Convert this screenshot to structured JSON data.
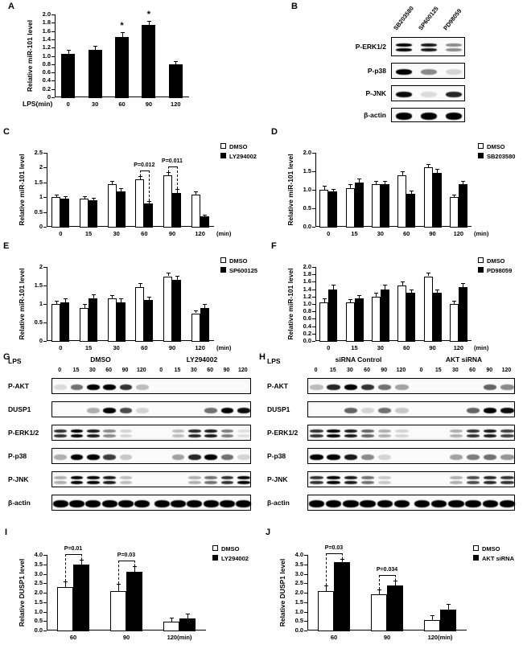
{
  "panel_labels": {
    "A": "A",
    "B": "B",
    "C": "C",
    "D": "D",
    "E": "E",
    "F": "F",
    "G": "G",
    "H": "H",
    "I": "I",
    "J": "J"
  },
  "chart_data": [
    {
      "panel": "A",
      "type": "bar",
      "ylabel": "Relative miR-101 level",
      "xlabel": "LPS(min)",
      "ylim": [
        0,
        2.0
      ],
      "yticks": [
        "0",
        "0.2",
        "0.4",
        "0.6",
        "0.8",
        "1.0",
        "1.2",
        "1.4",
        "1.6",
        "1.8",
        "2.0"
      ],
      "categories": [
        "0",
        "30",
        "60",
        "90",
        "120"
      ],
      "series": [
        {
          "name": "LPS",
          "fill": "#000000",
          "values": [
            1.05,
            1.15,
            1.45,
            1.75,
            0.8
          ],
          "errors": [
            0.1,
            0.1,
            0.13,
            0.1,
            0.08
          ]
        }
      ],
      "stars": [
        {
          "cat": 2,
          "text": "*"
        },
        {
          "cat": 3,
          "text": "*"
        }
      ]
    },
    {
      "panel": "C",
      "type": "bar",
      "legend": true,
      "ylabel": "Relative miR-101 level",
      "x_suffix": "(min)",
      "ylim": [
        0,
        2.5
      ],
      "yticks": [
        "0",
        "0.5",
        "1",
        "1.5",
        "2",
        "2.5"
      ],
      "categories": [
        "0",
        "15",
        "30",
        "60",
        "90",
        "120"
      ],
      "series": [
        {
          "name": "DMSO",
          "fill": "#ffffff",
          "values": [
            1.0,
            0.95,
            1.45,
            1.6,
            1.75,
            1.1
          ],
          "errors": [
            0.1,
            0.08,
            0.1,
            0.12,
            0.1,
            0.1
          ]
        },
        {
          "name": "LY294002",
          "fill": "#000000",
          "values": [
            0.95,
            0.9,
            1.2,
            0.8,
            1.15,
            0.35
          ],
          "errors": [
            0.08,
            0.08,
            0.1,
            0.08,
            0.12,
            0.05
          ]
        }
      ],
      "brackets": [
        {
          "cat": 3,
          "label": "P=0.012"
        },
        {
          "cat": 4,
          "label": "P=0.011"
        }
      ]
    },
    {
      "panel": "D",
      "type": "bar",
      "legend": true,
      "ylabel": "Relative miR-101 level",
      "x_suffix": "(min)",
      "ylim": [
        0,
        2.0
      ],
      "yticks": [
        "0.0",
        "0.5",
        "1.0",
        "1.5",
        "2.0"
      ],
      "categories": [
        "0",
        "15",
        "30",
        "60",
        "90",
        "120"
      ],
      "series": [
        {
          "name": "DMSO",
          "fill": "#ffffff",
          "values": [
            1.0,
            1.05,
            1.15,
            1.4,
            1.6,
            0.8
          ],
          "errors": [
            0.1,
            0.1,
            0.1,
            0.1,
            0.1,
            0.08
          ]
        },
        {
          "name": "SB203580",
          "fill": "#000000",
          "values": [
            0.95,
            1.2,
            1.15,
            0.9,
            1.45,
            1.15
          ],
          "errors": [
            0.08,
            0.1,
            0.1,
            0.08,
            0.12,
            0.1
          ]
        }
      ]
    },
    {
      "panel": "E",
      "type": "bar",
      "legend": true,
      "ylabel": "Relative miR-101 level",
      "x_suffix": "(min)",
      "ylim": [
        0,
        2.0
      ],
      "yticks": [
        "0",
        "0.5",
        "1",
        "1.5",
        "2"
      ],
      "categories": [
        "0",
        "15",
        "30",
        "60",
        "90",
        "120"
      ],
      "series": [
        {
          "name": "DMSO",
          "fill": "#ffffff",
          "values": [
            1.0,
            0.9,
            1.15,
            1.45,
            1.75,
            0.75
          ],
          "errors": [
            0.08,
            0.1,
            0.1,
            0.12,
            0.1,
            0.08
          ]
        },
        {
          "name": "SP600125",
          "fill": "#000000",
          "values": [
            1.05,
            1.15,
            1.05,
            1.1,
            1.65,
            0.9
          ],
          "errors": [
            0.1,
            0.12,
            0.1,
            0.1,
            0.12,
            0.1
          ]
        }
      ]
    },
    {
      "panel": "F",
      "type": "bar",
      "legend": true,
      "ylabel": "Relative miR-101 level",
      "x_suffix": "(min)",
      "ylim": [
        0,
        2.0
      ],
      "yticks": [
        "0.0",
        "0.2",
        "0.4",
        "0.6",
        "0.8",
        "1.0",
        "1.2",
        "1.4",
        "1.6",
        "1.8",
        "2.0"
      ],
      "categories": [
        "0",
        "15",
        "30",
        "60",
        "90",
        "120"
      ],
      "series": [
        {
          "name": "DMSO",
          "fill": "#ffffff",
          "values": [
            1.05,
            1.05,
            1.2,
            1.5,
            1.75,
            1.0
          ],
          "errors": [
            0.1,
            0.08,
            0.1,
            0.1,
            0.1,
            0.08
          ]
        },
        {
          "name": "PD98059",
          "fill": "#000000",
          "values": [
            1.4,
            1.15,
            1.4,
            1.3,
            1.3,
            1.45
          ],
          "errors": [
            0.12,
            0.1,
            0.12,
            0.1,
            0.1,
            0.12
          ]
        }
      ]
    },
    {
      "panel": "I",
      "type": "bar",
      "legend": true,
      "ylabel": "Relative DUSP1 level",
      "ylim": [
        0,
        4.0
      ],
      "yticks": [
        "0.0",
        "0.5",
        "1.0",
        "1.5",
        "2.0",
        "2.5",
        "3.0",
        "3.5",
        "4.0"
      ],
      "categories": [
        "60",
        "90",
        "120(min)"
      ],
      "series": [
        {
          "name": "DMSO",
          "fill": "#ffffff",
          "values": [
            2.3,
            2.1,
            0.45
          ],
          "errors": [
            0.3,
            0.35,
            0.25
          ]
        },
        {
          "name": "LY294002",
          "fill": "#000000",
          "values": [
            3.5,
            3.1,
            0.65
          ],
          "errors": [
            0.25,
            0.3,
            0.25
          ]
        }
      ],
      "brackets": [
        {
          "cat": 0,
          "label": "P=0.01"
        },
        {
          "cat": 1,
          "label": "P=0.03"
        }
      ]
    },
    {
      "panel": "J",
      "type": "bar",
      "legend": true,
      "ylabel": "Relative DUSP1 level",
      "ylim": [
        0,
        4.0
      ],
      "yticks": [
        "0.0",
        "0.5",
        "1.0",
        "1.5",
        "2.0",
        "2.5",
        "3.0",
        "3.5",
        "4.0"
      ],
      "categories": [
        "60",
        "90",
        "120(min)"
      ],
      "series": [
        {
          "name": "DMSO",
          "fill": "#ffffff",
          "values": [
            2.1,
            1.9,
            0.55
          ],
          "errors": [
            0.3,
            0.25,
            0.25
          ]
        },
        {
          "name": "AKT siRNA",
          "fill": "#000000",
          "values": [
            3.6,
            2.4,
            1.1
          ],
          "errors": [
            0.2,
            0.25,
            0.3
          ]
        }
      ],
      "brackets": [
        {
          "cat": 0,
          "label": "P=0.03"
        },
        {
          "cat": 1,
          "label": "P=0.034"
        }
      ]
    }
  ],
  "blots": {
    "B": {
      "panel": "B",
      "lane_labels": [
        "SB203580",
        "SP600125",
        "PD98059"
      ],
      "rows": [
        {
          "label": "P-ERK1/2",
          "doublet": true,
          "bands": [
            1,
            0.9,
            0.45
          ]
        },
        {
          "label": "P-p38",
          "bands": [
            1,
            0.45,
            0.15
          ]
        },
        {
          "label": "P-JNK",
          "bands": [
            0.95,
            0.12,
            0.85
          ]
        },
        {
          "label": "β-actin",
          "thick": true,
          "bands": [
            1,
            1,
            1
          ]
        }
      ]
    },
    "G": {
      "panel": "G",
      "lps_label": "LPS",
      "groups": [
        {
          "label": "DMSO",
          "times": [
            "0",
            "15",
            "30",
            "60",
            "90",
            "120"
          ]
        },
        {
          "label": "LY294002",
          "times": [
            "0",
            "15",
            "30",
            "60",
            "90",
            "120"
          ]
        }
      ],
      "rows": [
        {
          "label": "P-AKT",
          "bands": [
            [
              0.12,
              0.55,
              1,
              1,
              0.8,
              0.25
            ],
            [
              0,
              0,
              0,
              0,
              0,
              0
            ]
          ]
        },
        {
          "label": "DUSP1",
          "bands": [
            [
              0,
              0,
              0.3,
              1,
              0.7,
              0.15
            ],
            [
              0,
              0,
              0,
              0.55,
              1,
              0.95
            ]
          ]
        },
        {
          "label": "P-ERK1/2",
          "doublet": true,
          "bands": [
            [
              0.8,
              1,
              0.9,
              0.45,
              0.15,
              0
            ],
            [
              0,
              0.25,
              0.85,
              0.9,
              0.5,
              0.1
            ]
          ]
        },
        {
          "label": "P-p38",
          "bands": [
            [
              0.3,
              1,
              1,
              0.75,
              0.2,
              0
            ],
            [
              0,
              0.35,
              0.85,
              1,
              0.55,
              0.15
            ]
          ]
        },
        {
          "label": "P-JNK",
          "doublet": true,
          "bands": [
            [
              0.3,
              1,
              1,
              0.9,
              0.25,
              0
            ],
            [
              0,
              0,
              0.3,
              0.55,
              0.8,
              1
            ]
          ]
        },
        {
          "label": "β-actin",
          "thick": true,
          "bands": [
            [
              1,
              1,
              1,
              1,
              1,
              1
            ],
            [
              1,
              1,
              1,
              1,
              1,
              1
            ]
          ]
        }
      ]
    },
    "H": {
      "panel": "H",
      "lps_label": "LPS",
      "groups": [
        {
          "label": "siRNA Control",
          "times": [
            "0",
            "15",
            "30",
            "60",
            "90",
            "120"
          ]
        },
        {
          "label": "AKT siRNA",
          "times": [
            "0",
            "15",
            "30",
            "60",
            "90",
            "120"
          ]
        }
      ],
      "rows": [
        {
          "label": "P-AKT",
          "bands": [
            [
              0.25,
              0.85,
              1,
              0.8,
              0.55,
              0.35
            ],
            [
              0,
              0,
              0,
              0,
              0.6,
              0.45
            ]
          ]
        },
        {
          "label": "DUSP1",
          "bands": [
            [
              0,
              0,
              0.6,
              0.15,
              0.55,
              0.2
            ],
            [
              0,
              0,
              0,
              0.6,
              1,
              0.95
            ]
          ]
        },
        {
          "label": "P-ERK1/2",
          "doublet": true,
          "bands": [
            [
              0.8,
              1,
              0.9,
              0.6,
              0.3,
              0.15
            ],
            [
              0,
              0,
              0.3,
              0.8,
              0.9,
              0.75
            ]
          ]
        },
        {
          "label": "P-p38",
          "bands": [
            [
              1,
              1,
              0.9,
              0.45,
              0.15,
              0
            ],
            [
              0,
              0,
              0.35,
              0.5,
              0.55,
              0.4
            ]
          ]
        },
        {
          "label": "P-JNK",
          "doublet": true,
          "bands": [
            [
              0.8,
              1,
              0.9,
              0.55,
              0.2,
              0
            ],
            [
              0,
              0,
              0.3,
              0.7,
              0.85,
              0.8
            ]
          ]
        },
        {
          "label": "β-actin",
          "thick": true,
          "bands": [
            [
              1,
              1,
              1,
              1,
              1,
              1
            ],
            [
              1,
              1,
              1,
              1,
              1,
              1
            ]
          ]
        }
      ]
    }
  }
}
